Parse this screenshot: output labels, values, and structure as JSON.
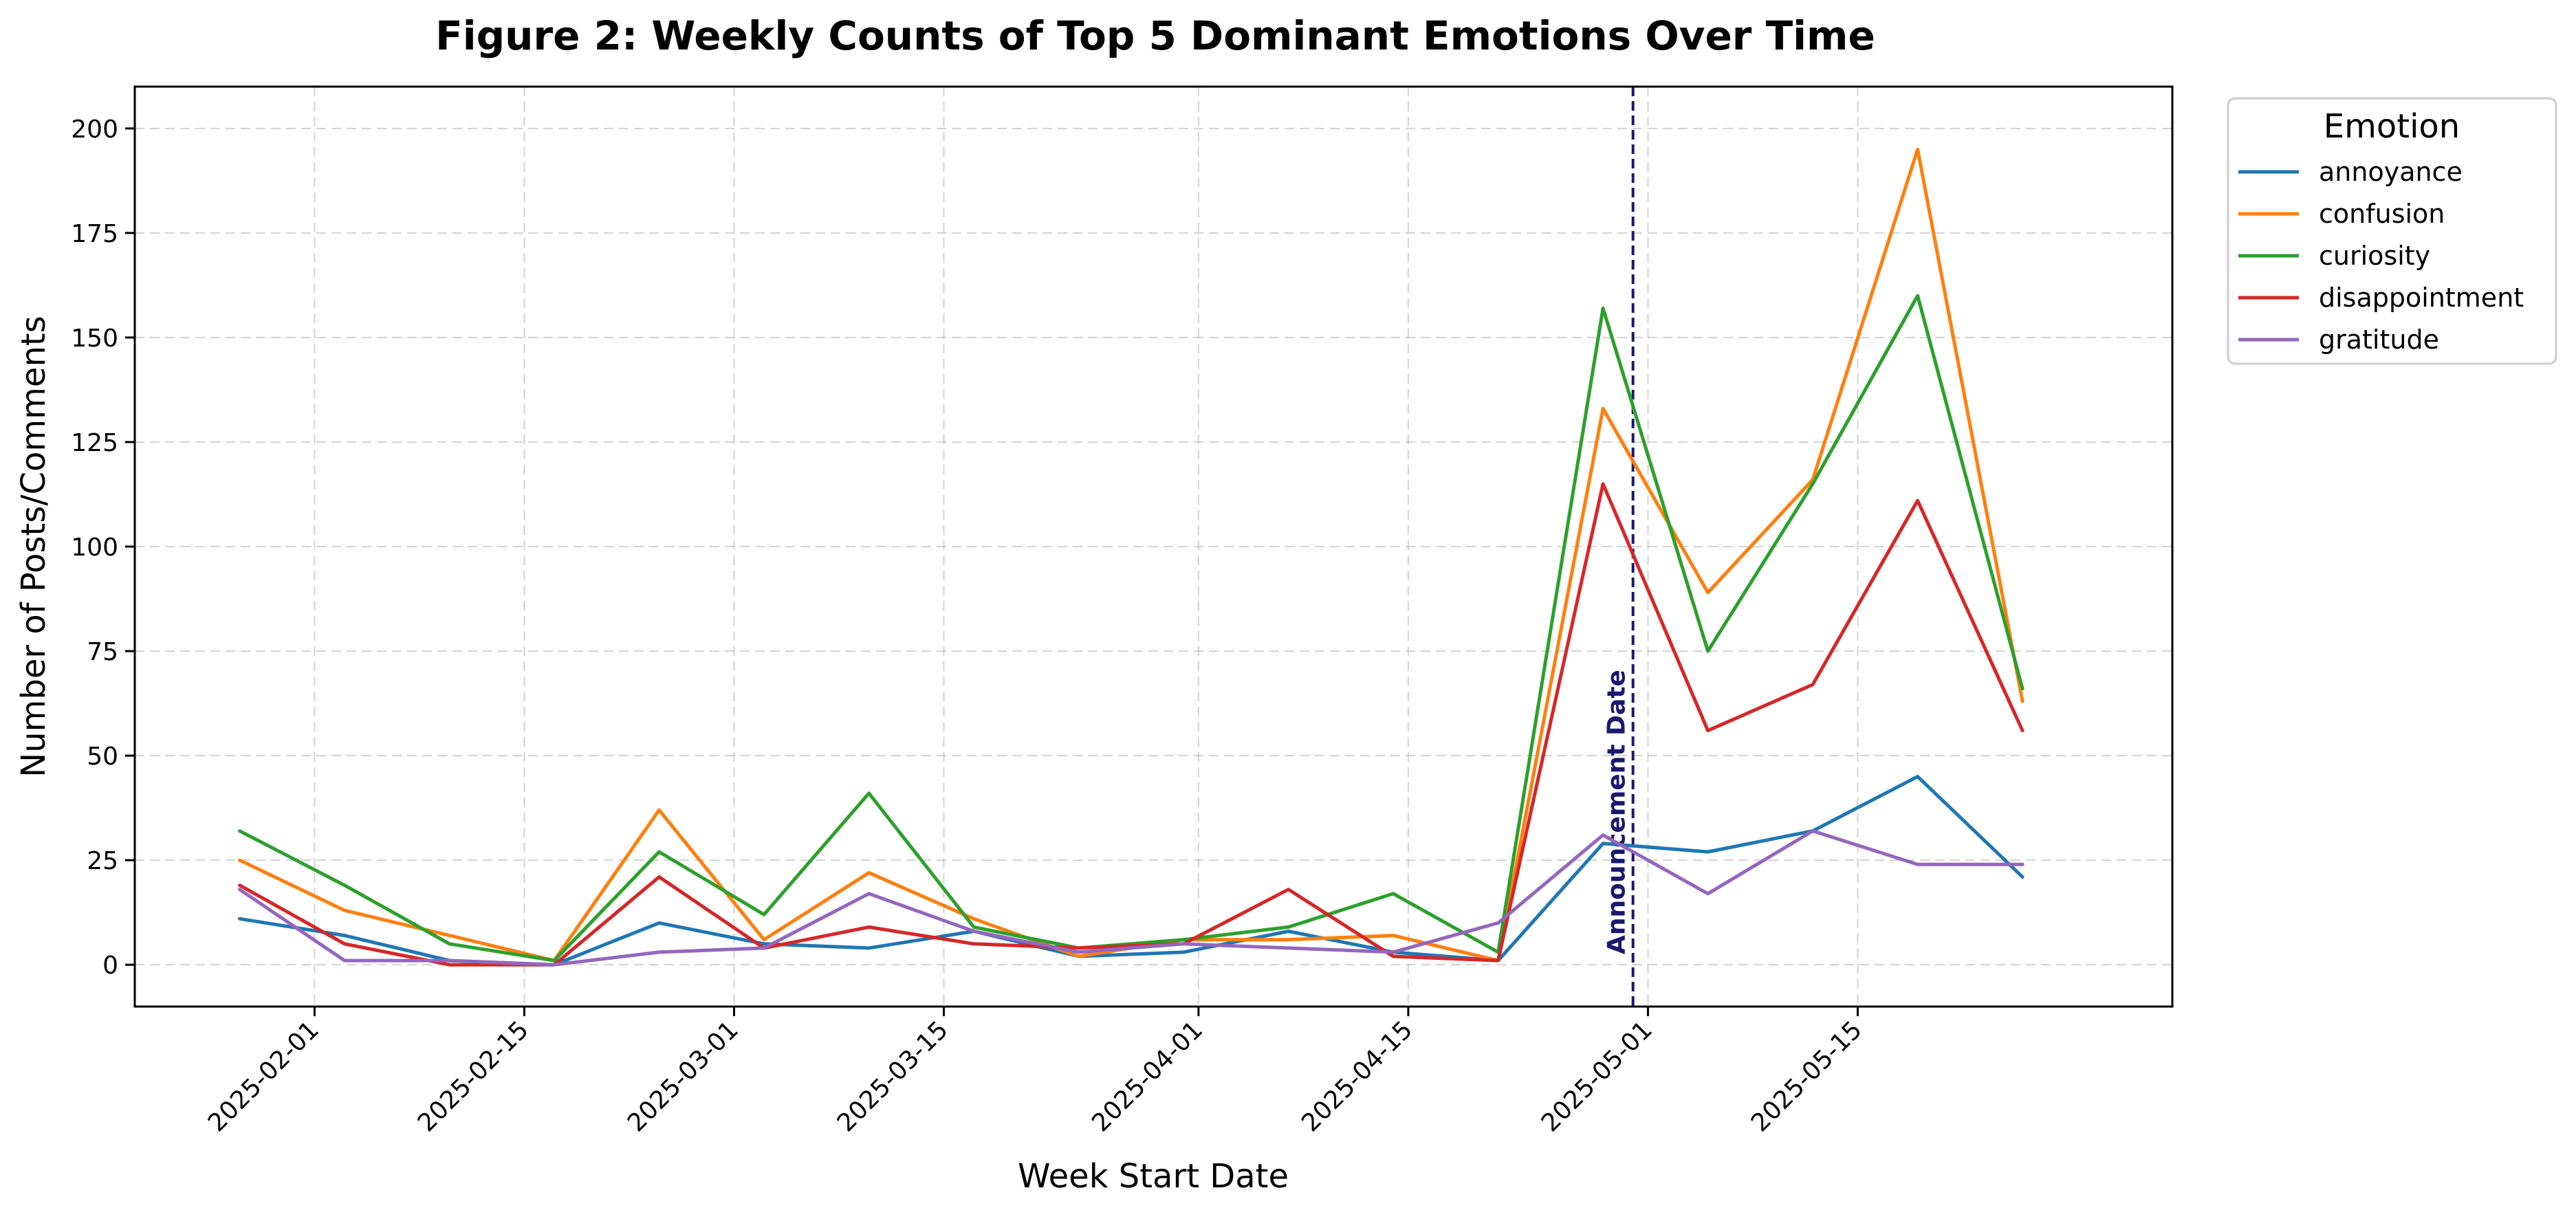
{
  "chart_data": {
    "type": "line",
    "title": "Figure 2: Weekly Counts of Top 5 Dominant Emotions Over Time",
    "xlabel": "Week Start Date",
    "ylabel": "Number of Posts/Comments",
    "x": [
      "2025-01-27",
      "2025-02-03",
      "2025-02-10",
      "2025-02-17",
      "2025-02-24",
      "2025-03-03",
      "2025-03-10",
      "2025-03-17",
      "2025-03-24",
      "2025-03-31",
      "2025-04-07",
      "2025-04-14",
      "2025-04-21",
      "2025-04-28",
      "2025-05-05",
      "2025-05-12",
      "2025-05-19",
      "2025-05-26"
    ],
    "xlim": [
      "2025-01-20",
      "2025-06-05"
    ],
    "ylim": [
      -10,
      210
    ],
    "x_ticks": [
      "2025-02-01",
      "2025-02-15",
      "2025-03-01",
      "2025-03-15",
      "2025-04-01",
      "2025-04-15",
      "2025-05-01",
      "2025-05-15"
    ],
    "y_ticks": [
      0,
      25,
      50,
      75,
      100,
      125,
      150,
      175,
      200
    ],
    "grid": true,
    "legend": {
      "title": "Emotion",
      "placement": "outside-top-right"
    },
    "series": [
      {
        "name": "annoyance",
        "color": "#1f77b4",
        "values": [
          11,
          7,
          1,
          0,
          10,
          5,
          4,
          8,
          2,
          3,
          8,
          3,
          1,
          29,
          27,
          32,
          45,
          21
        ]
      },
      {
        "name": "confusion",
        "color": "#ff7f0e",
        "values": [
          25,
          13,
          7,
          1,
          37,
          6,
          22,
          11,
          2,
          6,
          6,
          7,
          1,
          133,
          89,
          116,
          195,
          63
        ]
      },
      {
        "name": "curiosity",
        "color": "#2ca02c",
        "values": [
          32,
          19,
          5,
          1,
          27,
          12,
          41,
          9,
          4,
          6,
          9,
          17,
          3,
          157,
          75,
          115,
          160,
          66
        ]
      },
      {
        "name": "disappointment",
        "color": "#d62728",
        "values": [
          19,
          5,
          0,
          0,
          21,
          4,
          9,
          5,
          4,
          5,
          18,
          2,
          1,
          115,
          56,
          67,
          111,
          56
        ]
      },
      {
        "name": "gratitude",
        "color": "#9467bd",
        "values": [
          18,
          1,
          1,
          0,
          3,
          4,
          17,
          8,
          3,
          5,
          4,
          3,
          10,
          31,
          17,
          32,
          24,
          24
        ]
      }
    ],
    "annotations": [
      {
        "type": "vline",
        "x": "2025-04-30",
        "color": "#191970",
        "style": "dashed",
        "label": "Announcement Date"
      }
    ]
  }
}
